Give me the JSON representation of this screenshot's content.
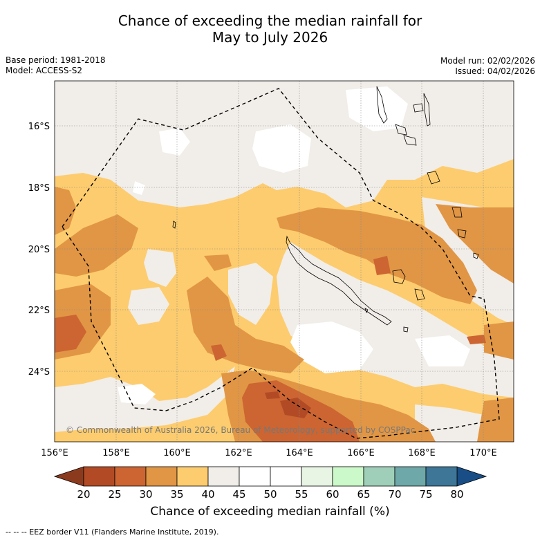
{
  "title": {
    "line1": "Chance of exceeding the median rainfall for",
    "line2": "May to July 2026"
  },
  "meta": {
    "base_period": "Base period: 1981-2018",
    "model": "Model: ACCESS-S2",
    "model_run": "Model run: 02/02/2026",
    "issued": "Issued: 04/02/2026"
  },
  "map": {
    "lon_labels": [
      "156°E",
      "158°E",
      "160°E",
      "162°E",
      "164°E",
      "166°E",
      "168°E",
      "170°E"
    ],
    "lat_labels": [
      "16°S",
      "18°S",
      "20°S",
      "22°S",
      "24°S"
    ],
    "copyright": "© Commonwealth of Australia 2026, Bureau of Meteorology, supported by COSPPac"
  },
  "colorbar": {
    "ticks": [
      "20",
      "25",
      "30",
      "35",
      "40",
      "45",
      "50",
      "55",
      "60",
      "65",
      "70",
      "75",
      "80"
    ],
    "colors": [
      "#b24b25",
      "#cc6532",
      "#e19645",
      "#fdcc6e",
      "#f1ede8",
      "#ffffff",
      "#ffffff",
      "#e8f4e4",
      "#cbf9c9",
      "#9fcfb8",
      "#6ea8a8",
      "#3d7696"
    ],
    "extend_low_color": "#8b3a1e",
    "extend_high_color": "#184d86",
    "label": "Chance of exceeding median rainfall (%)"
  },
  "footnote": "-- -- -- EEZ border V11 (Flanders Marine Institute, 2019)."
}
